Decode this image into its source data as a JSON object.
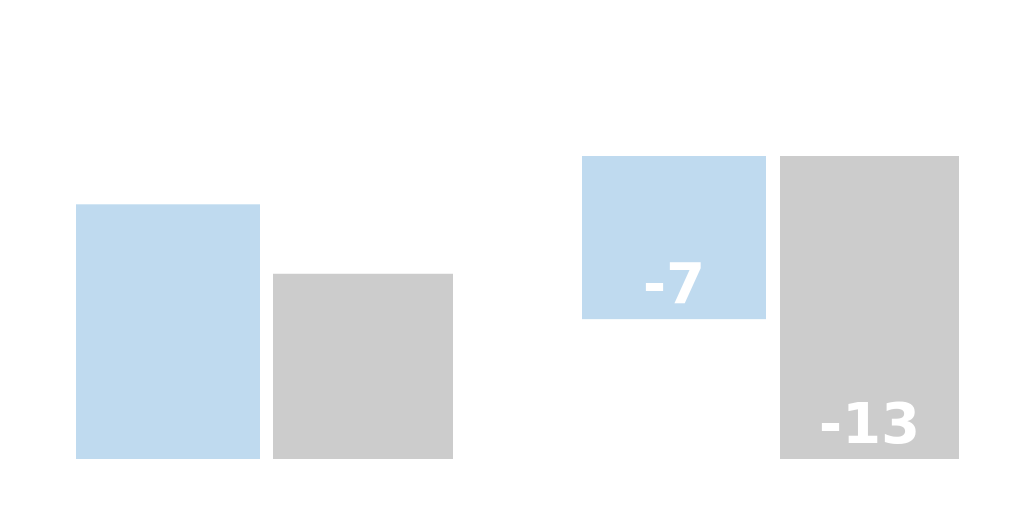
{
  "chart_data": {
    "type": "bar",
    "title": "",
    "xlabel": "",
    "ylabel": "",
    "grid": false,
    "legend": "none",
    "panels": [
      {
        "bars": [
          {
            "series_index": 0,
            "value": 11,
            "label": ""
          },
          {
            "series_index": 1,
            "value": 8,
            "label": ""
          }
        ],
        "ylim": [
          0,
          13
        ]
      },
      {
        "bars": [
          {
            "series_index": 0,
            "value": -7,
            "label": "-7"
          },
          {
            "series_index": 1,
            "value": -13,
            "label": "-13"
          }
        ],
        "ylim": [
          -13,
          0
        ]
      }
    ],
    "colors": {
      "series_0": "#bfdaef",
      "series_1": "#cccccc",
      "label_text": "#ffffff"
    }
  }
}
